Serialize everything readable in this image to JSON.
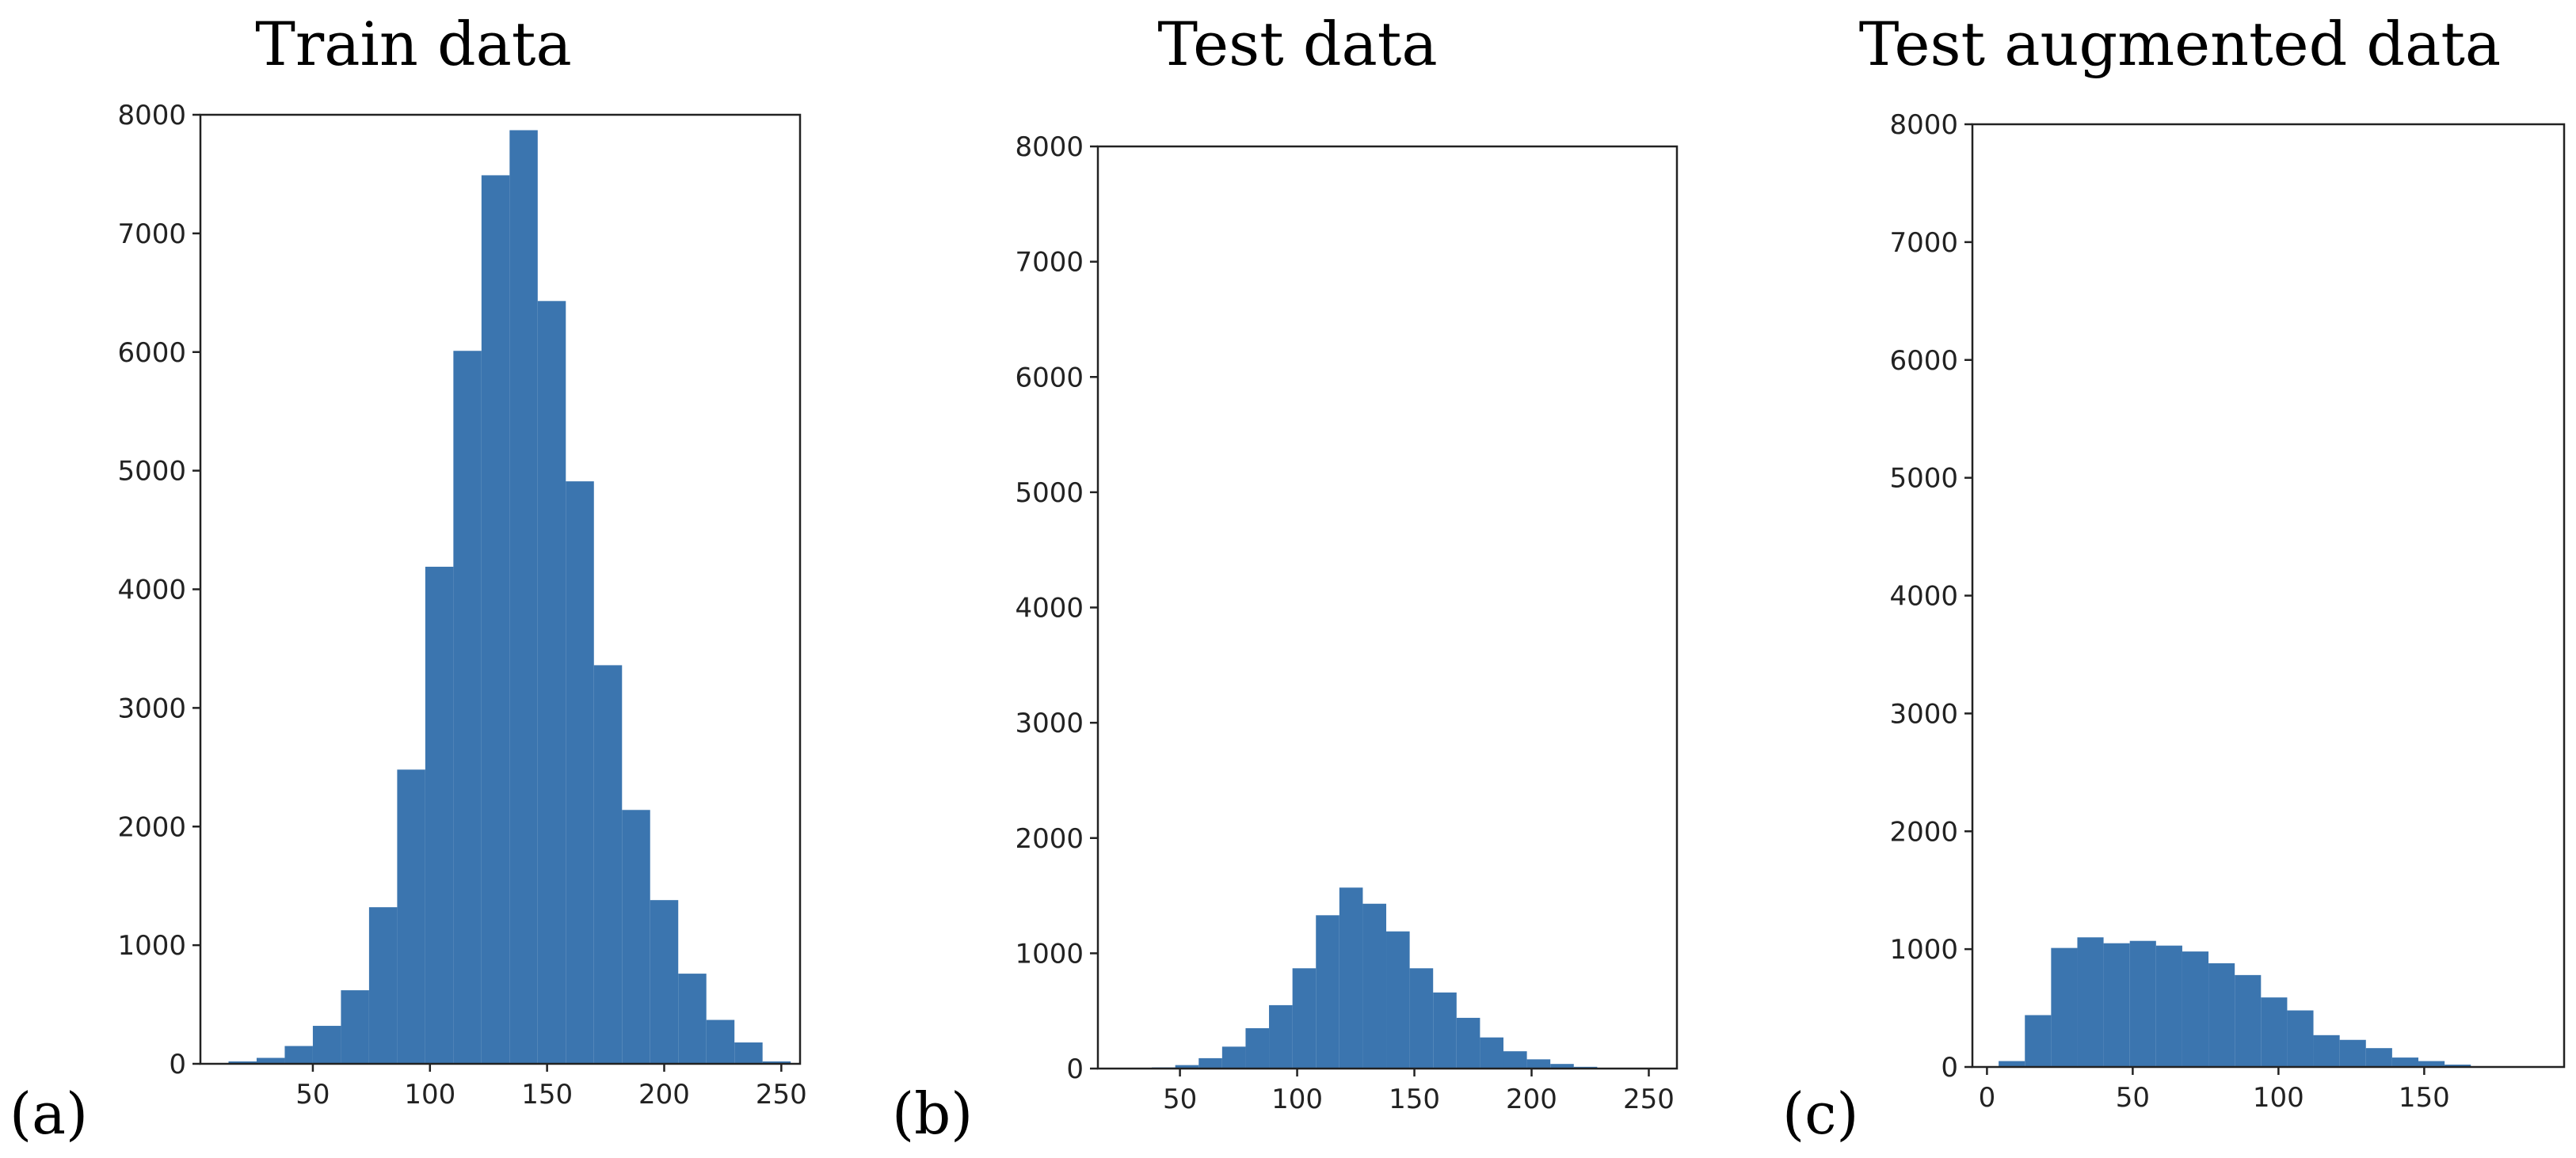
{
  "chart_data": [
    {
      "type": "bar",
      "panel_label": "(a)",
      "title": "Train data",
      "xlabel": "",
      "ylabel": "",
      "xlim": [
        2,
        258
      ],
      "ylim": [
        0,
        8000
      ],
      "xticks": [
        50,
        100,
        150,
        200,
        250
      ],
      "yticks": [
        0,
        1000,
        2000,
        3000,
        4000,
        5000,
        6000,
        7000,
        8000
      ],
      "grid": false,
      "bin_edges": [
        14,
        26,
        38,
        50,
        62,
        74,
        86,
        98,
        110,
        122,
        134,
        146,
        158,
        170,
        182,
        194,
        206,
        218,
        230,
        242,
        254
      ],
      "values": [
        20,
        50,
        150,
        320,
        620,
        1320,
        2480,
        4190,
        6010,
        7490,
        7870,
        6430,
        4910,
        3360,
        2140,
        1380,
        760,
        370,
        180,
        20
      ]
    },
    {
      "type": "bar",
      "panel_label": "(b)",
      "title": "Test data",
      "xlabel": "",
      "ylabel": "",
      "xlim": [
        15,
        262
      ],
      "ylim": [
        0,
        8000
      ],
      "xticks": [
        50,
        100,
        150,
        200,
        250
      ],
      "yticks": [
        0,
        1000,
        2000,
        3000,
        4000,
        5000,
        6000,
        7000,
        8000
      ],
      "grid": false,
      "bin_edges": [
        38,
        48,
        58,
        68,
        78,
        88,
        98,
        108,
        118,
        128,
        138,
        148,
        158,
        168,
        178,
        188,
        198,
        208,
        218,
        228,
        238,
        248
      ],
      "values": [
        10,
        30,
        90,
        190,
        350,
        550,
        870,
        1330,
        1570,
        1430,
        1190,
        870,
        660,
        440,
        270,
        150,
        80,
        40,
        15,
        5,
        0
      ]
    },
    {
      "type": "bar",
      "panel_label": "(c)",
      "title": "Test augmented data",
      "xlabel": "",
      "ylabel": "",
      "xlim": [
        -5,
        198
      ],
      "ylim": [
        0,
        8000
      ],
      "xticks": [
        0,
        50,
        100,
        150
      ],
      "yticks": [
        0,
        1000,
        2000,
        3000,
        4000,
        5000,
        6000,
        7000,
        8000
      ],
      "grid": false,
      "bin_edges": [
        4,
        13,
        22,
        31,
        40,
        49,
        58,
        67,
        76,
        85,
        94,
        103,
        112,
        121,
        130,
        139,
        148,
        157,
        166,
        175
      ],
      "values": [
        50,
        440,
        1010,
        1100,
        1050,
        1070,
        1030,
        980,
        880,
        780,
        590,
        480,
        270,
        230,
        160,
        80,
        50,
        20,
        5
      ]
    }
  ]
}
